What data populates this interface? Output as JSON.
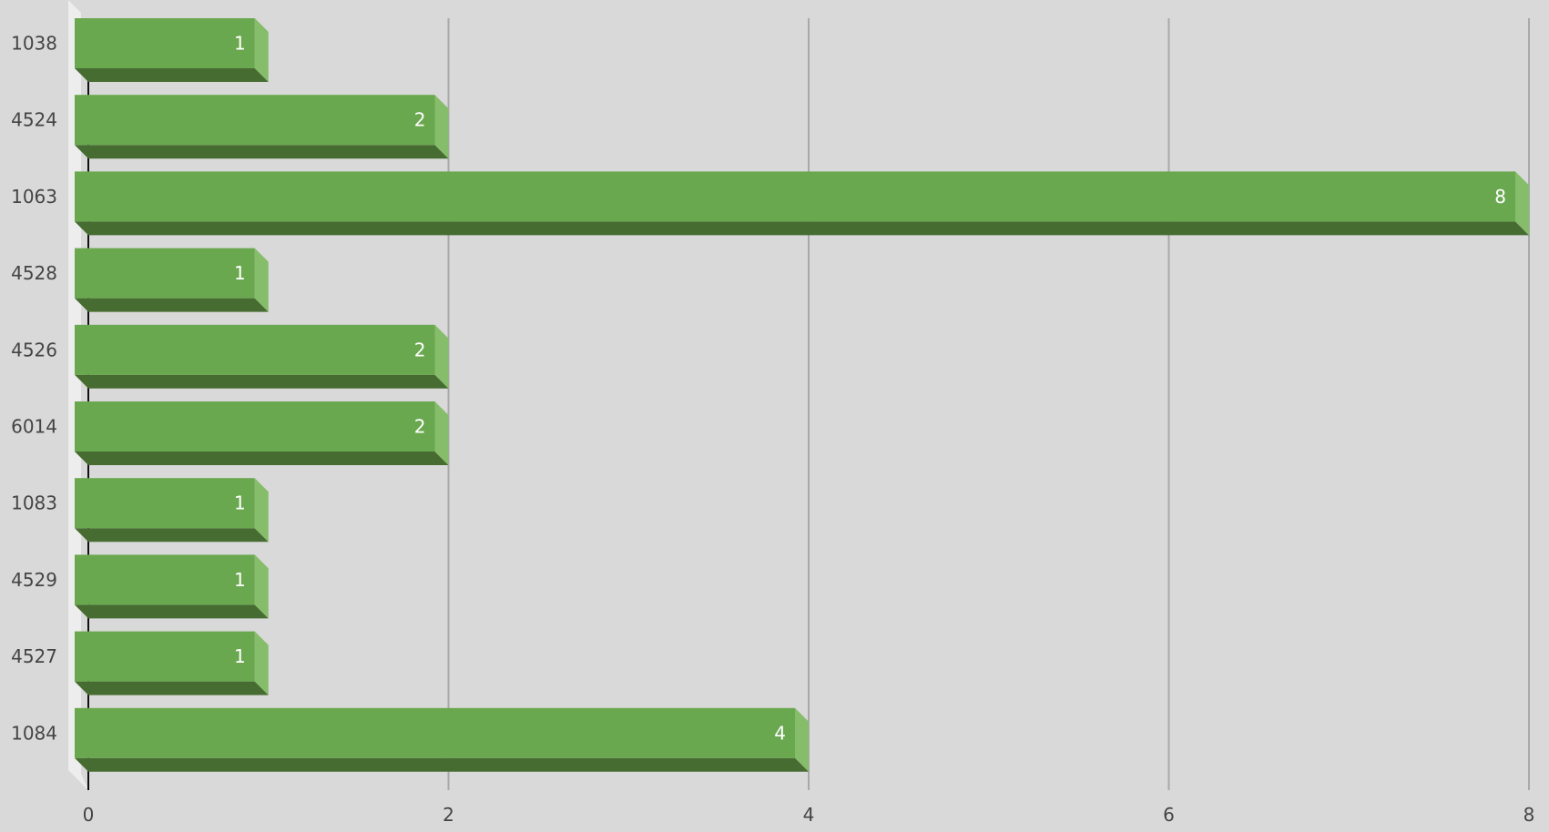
{
  "chart_data": {
    "type": "bar",
    "orientation": "horizontal",
    "style": "3d",
    "categories": [
      "1038",
      "4524",
      "1063",
      "4528",
      "4526",
      "6014",
      "1083",
      "4529",
      "4527",
      "1084"
    ],
    "values": [
      1,
      2,
      8,
      1,
      2,
      2,
      1,
      1,
      1,
      4
    ],
    "data_labels": [
      "1",
      "2",
      "8",
      "1",
      "2",
      "2",
      "1",
      "1",
      "1",
      "4"
    ],
    "xlim": [
      0,
      8
    ],
    "x_ticks": [
      "0",
      "2",
      "4",
      "6",
      "8"
    ],
    "grid": true,
    "legend": "none",
    "colors": {
      "background": "#d9d9d9",
      "bar_front": "#6aa84f",
      "bar_bottom": "#476c32",
      "bar_side": "#86bd6a",
      "gridline": "#a9a9a9",
      "side_wall": "#ededed",
      "axis_line": "#111111",
      "label_text": "#444444",
      "data_label_text": "#ffffff"
    }
  }
}
